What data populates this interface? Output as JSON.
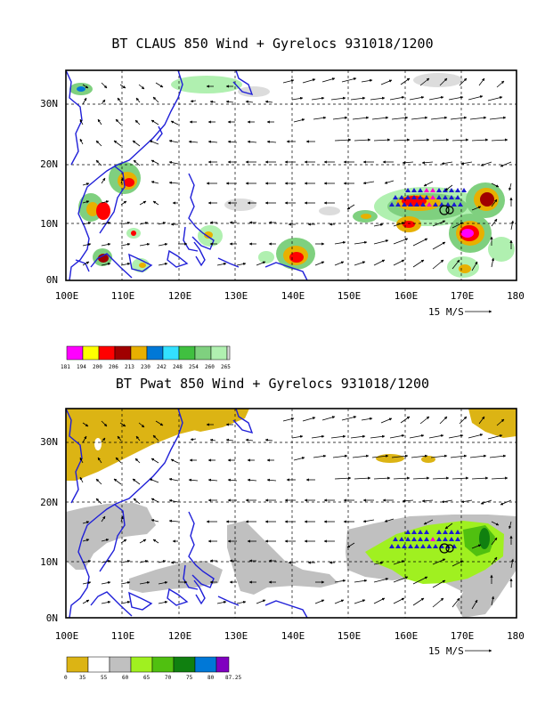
{
  "top_panel": {
    "title": "BT CLAUS 850 Wind + Gyrelocs 931018/1200",
    "lat_labels": [
      "30N",
      "20N",
      "10N",
      "0N"
    ],
    "lon_labels": [
      "100E",
      "110E",
      "120E",
      "130E",
      "140E",
      "150E",
      "160E",
      "170E",
      "180"
    ],
    "vector_scale": "15 M/S",
    "colorbar": {
      "colors": [
        "#ff00ff",
        "#ffff00",
        "#ff0000",
        "#a00000",
        "#e8b000",
        "#0078d7",
        "#33e0ff",
        "#40c040",
        "#7fd07f",
        "#b0f0b0",
        "#dcdcdc"
      ],
      "labels": [
        "181",
        "194",
        "200",
        "206",
        "213",
        "230",
        "242",
        "248",
        "254",
        "260",
        "265"
      ]
    }
  },
  "bottom_panel": {
    "title": "BT Pwat 850 Wind + Gyrelocs 931018/1200",
    "lat_labels": [
      "30N",
      "20N",
      "10N",
      "0N"
    ],
    "lon_labels": [
      "100E",
      "110E",
      "120E",
      "130E",
      "140E",
      "150E",
      "160E",
      "170E",
      "180"
    ],
    "vector_scale": "15 M/S",
    "colorbar": {
      "colors": [
        "#dcb414",
        "#ffffff",
        "#c0c0c0",
        "#a0f020",
        "#50c010",
        "#108010",
        "#0078d7",
        "#8000c0"
      ],
      "labels": [
        "0",
        "35",
        "55",
        "60",
        "65",
        "70",
        "75",
        "80",
        "87.25"
      ]
    }
  },
  "colors": {
    "coastline": "#1f1fd8",
    "gyre_marker": "#1a1ad0",
    "gyre_center": "#ff00cc"
  }
}
